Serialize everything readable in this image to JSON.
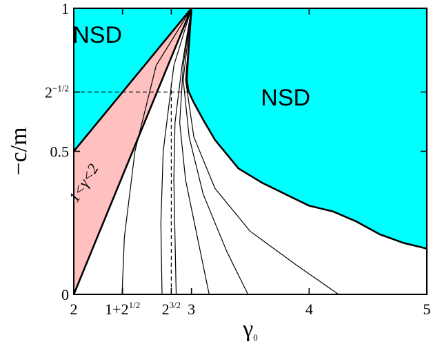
{
  "chart_data": {
    "type": "area",
    "xlabel": {
      "text": "γ",
      "sub": "0"
    },
    "ylabel": "−c/m",
    "xlim": [
      2,
      5
    ],
    "ylim": [
      0,
      1
    ],
    "x_ticks": [
      {
        "value": 2,
        "parts": [
          {
            "t": "2"
          }
        ]
      },
      {
        "value": 2.41421,
        "parts": [
          {
            "t": "1+2"
          },
          {
            "t": "1/2",
            "sup": true
          }
        ]
      },
      {
        "value": 2.82843,
        "parts": [
          {
            "t": "2"
          },
          {
            "t": "3/2",
            "sup": true
          }
        ]
      },
      {
        "value": 3,
        "parts": [
          {
            "t": "3"
          }
        ]
      },
      {
        "value": 4,
        "parts": [
          {
            "t": "4"
          }
        ]
      },
      {
        "value": 5,
        "parts": [
          {
            "t": "5"
          }
        ]
      }
    ],
    "y_ticks": [
      {
        "value": 0,
        "parts": [
          {
            "t": "0"
          }
        ]
      },
      {
        "value": 0.5,
        "parts": [
          {
            "t": "0.5"
          }
        ]
      },
      {
        "value": 0.70711,
        "parts": [
          {
            "t": "2"
          },
          {
            "t": "−1/2",
            "sup": true
          }
        ]
      },
      {
        "value": 1,
        "parts": [
          {
            "t": "1"
          }
        ]
      }
    ],
    "regions": [
      {
        "label": "NSD",
        "color": "#00ffff",
        "polygon": [
          [
            2,
            0.5
          ],
          [
            2,
            1
          ],
          [
            3,
            1
          ]
        ]
      },
      {
        "label": "NSD",
        "color": "#00ffff",
        "polygon": [
          [
            3,
            1
          ],
          [
            5,
            1
          ],
          [
            5,
            0.16
          ],
          [
            4.8,
            0.18
          ],
          [
            4.6,
            0.21
          ],
          [
            4.4,
            0.255
          ],
          [
            4.2,
            0.29
          ],
          [
            4,
            0.31
          ],
          [
            3.8,
            0.35
          ],
          [
            3.6,
            0.39
          ],
          [
            3.4,
            0.44
          ],
          [
            3.2,
            0.54
          ],
          [
            3.1,
            0.61
          ],
          [
            3.02,
            0.67
          ],
          [
            2.975,
            0.71
          ],
          [
            2.96,
            0.75
          ],
          [
            2.97,
            0.82
          ],
          [
            3,
            1
          ]
        ]
      },
      {
        "label": "1<γ<2",
        "color": "#ffc0c0",
        "polygon": [
          [
            2,
            0
          ],
          [
            2,
            0.5
          ],
          [
            3,
            1
          ]
        ]
      }
    ],
    "boundaries": [
      {
        "name": "upper-wedge-boundary",
        "points": [
          [
            2,
            0.5
          ],
          [
            3,
            1
          ]
        ]
      },
      {
        "name": "lower-wedge-boundary",
        "points": [
          [
            2,
            0
          ],
          [
            3,
            1
          ]
        ]
      },
      {
        "name": "nsd-boundary",
        "points": [
          [
            3,
            1
          ],
          [
            2.97,
            0.82
          ],
          [
            2.96,
            0.75
          ],
          [
            2.975,
            0.71
          ],
          [
            3.02,
            0.67
          ],
          [
            3.1,
            0.61
          ],
          [
            3.2,
            0.54
          ],
          [
            3.4,
            0.44
          ],
          [
            3.6,
            0.39
          ],
          [
            3.8,
            0.35
          ],
          [
            4,
            0.31
          ],
          [
            4.2,
            0.29
          ],
          [
            4.4,
            0.255
          ],
          [
            4.6,
            0.21
          ],
          [
            4.8,
            0.18
          ],
          [
            5,
            0.16
          ]
        ]
      }
    ],
    "curves": [
      {
        "name": "curve-1",
        "points": [
          [
            2.41,
            0
          ],
          [
            2.43,
            0.2
          ],
          [
            2.52,
            0.5
          ],
          [
            2.7,
            0.8
          ],
          [
            3,
            1
          ]
        ]
      },
      {
        "name": "curve-2",
        "points": [
          [
            2.75,
            0
          ],
          [
            2.74,
            0.25
          ],
          [
            2.76,
            0.5
          ],
          [
            2.85,
            0.8
          ],
          [
            3,
            1
          ]
        ]
      },
      {
        "name": "curve-3",
        "points": [
          [
            2.87,
            0
          ],
          [
            2.86,
            0.2
          ],
          [
            2.85,
            0.4
          ],
          [
            2.86,
            0.6
          ],
          [
            2.92,
            0.8
          ],
          [
            3,
            1
          ]
        ]
      },
      {
        "name": "curve-4",
        "points": [
          [
            3.15,
            0
          ],
          [
            3.05,
            0.2
          ],
          [
            2.95,
            0.4
          ],
          [
            2.9,
            0.6
          ],
          [
            2.93,
            0.8
          ],
          [
            3,
            1
          ]
        ]
      },
      {
        "name": "curve-5",
        "points": [
          [
            3.48,
            0
          ],
          [
            3.3,
            0.15
          ],
          [
            3.1,
            0.35
          ],
          [
            2.98,
            0.55
          ],
          [
            2.93,
            0.75
          ],
          [
            3,
            1
          ]
        ]
      },
      {
        "name": "curve-6",
        "points": [
          [
            4.25,
            0
          ],
          [
            3.9,
            0.1
          ],
          [
            3.5,
            0.22
          ],
          [
            3.2,
            0.37
          ],
          [
            3.02,
            0.55
          ],
          [
            2.95,
            0.75
          ],
          [
            3,
            1
          ]
        ]
      }
    ],
    "dashed_lines": [
      {
        "name": "dashed-y-ref",
        "points": [
          [
            2,
            0.70711
          ],
          [
            2.96,
            0.70711
          ]
        ]
      },
      {
        "name": "dashed-x-ref",
        "points": [
          [
            2.82843,
            0
          ],
          [
            2.82843,
            0.74
          ]
        ]
      }
    ],
    "labels": [
      {
        "text": "NSD",
        "x": 2.2,
        "y": 0.88,
        "class": "region-label"
      },
      {
        "text": "NSD",
        "x": 3.8,
        "y": 0.66,
        "class": "region-label"
      },
      {
        "text": "1<γ<2",
        "x": 2.12,
        "y": 0.38,
        "class": "band-label",
        "rotate": -58
      }
    ]
  }
}
